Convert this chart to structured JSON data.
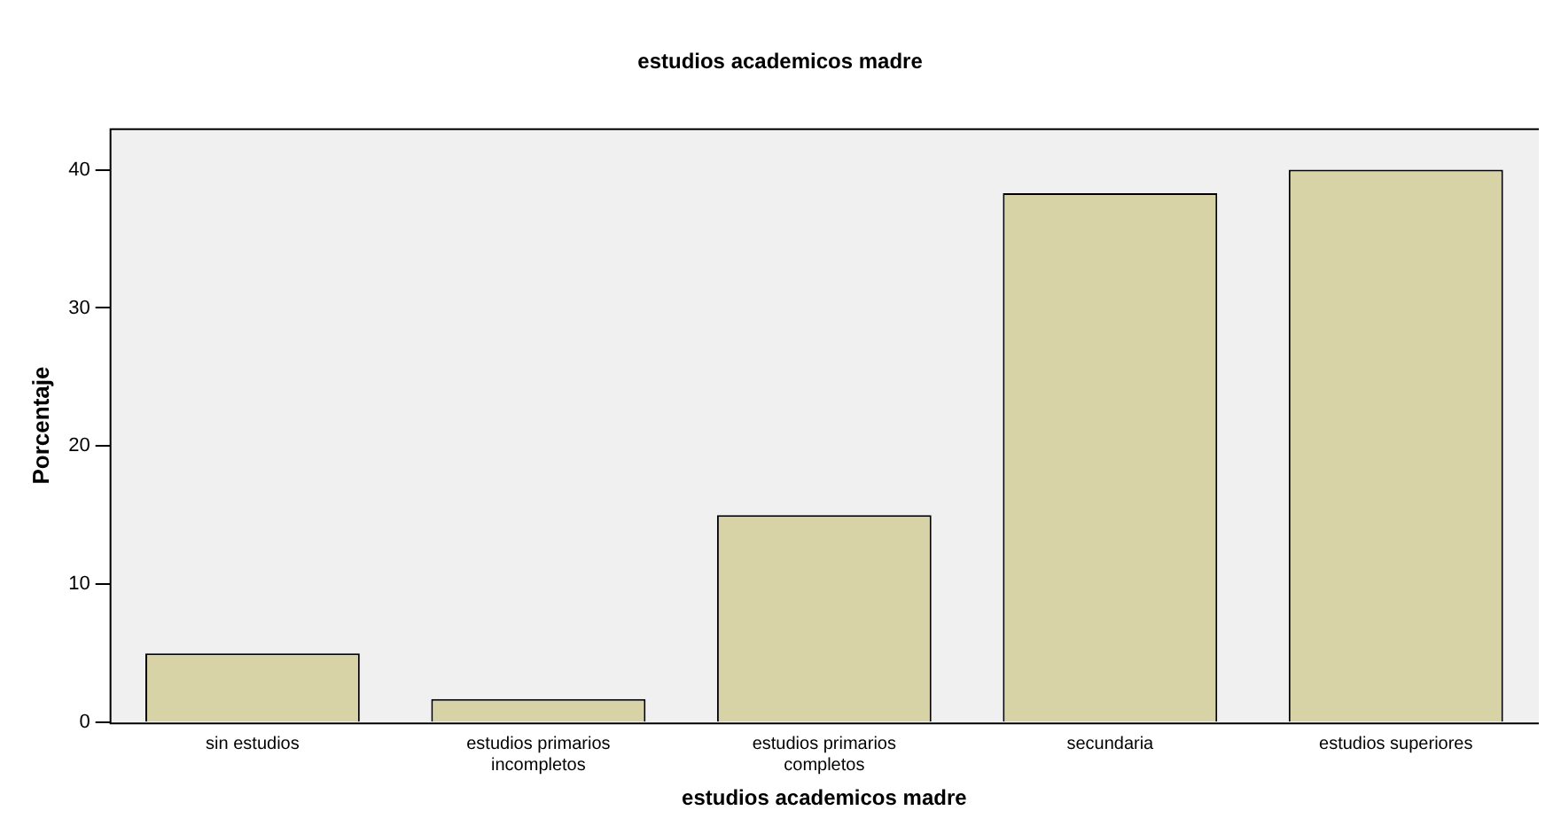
{
  "chart_data": {
    "type": "bar",
    "title": "estudios academicos madre",
    "xlabel": "estudios academicos madre",
    "ylabel": "Porcentaje",
    "categories": [
      "sin estudios",
      "estudios primarios incompletos",
      "estudios primarios completos",
      "secundaria",
      "estudios superiores"
    ],
    "values": [
      5,
      1.7,
      15,
      38.3,
      40
    ],
    "color": "#d8d3a6",
    "ylim": [
      0,
      43
    ],
    "yticks": [
      0,
      10,
      20,
      30,
      40
    ],
    "grid": false,
    "legend": false
  }
}
